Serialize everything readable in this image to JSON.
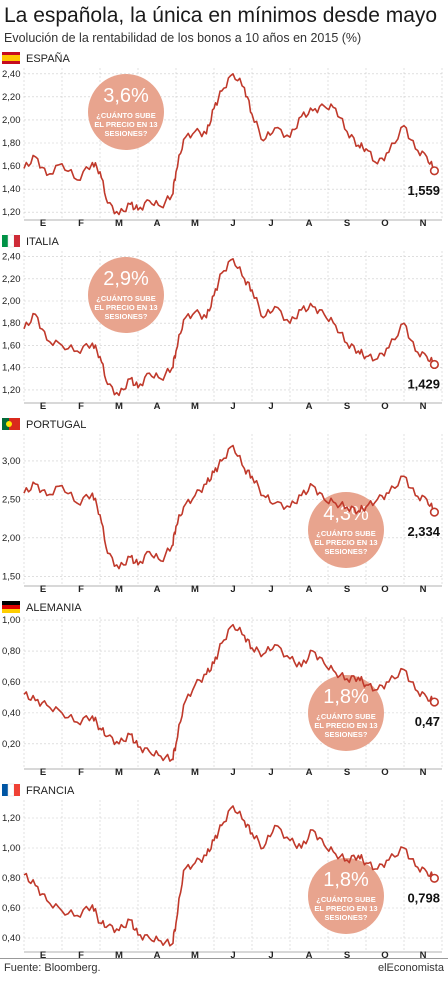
{
  "title": "La española, la única en mínimos desde mayo",
  "subtitle": "Evolución de la rentabilidad de los bonos a 10 años en 2015 (%)",
  "footer": {
    "source": "Fuente: Bloomberg.",
    "brand": "elEconomista"
  },
  "colors": {
    "line": "#c0392b",
    "bubble": "#e8a48e",
    "grid": "#cccccc"
  },
  "chart_data": [
    {
      "type": "line",
      "country": "ESPAÑA",
      "flag": "flag-spain",
      "months": [
        "E",
        "F",
        "M",
        "A",
        "M",
        "J",
        "J",
        "A",
        "S",
        "O",
        "N"
      ],
      "ylim": [
        1.15,
        2.45
      ],
      "yticks": [
        "1,20",
        "1,40",
        "1,60",
        "1,80",
        "2,00",
        "2,20",
        "2,40"
      ],
      "ytick_values": [
        1.2,
        1.4,
        1.6,
        1.8,
        2.0,
        2.2,
        2.4
      ],
      "last_value": "1,559",
      "bubble": {
        "pct": "3,6%",
        "question": [
          "¿CUÁNTO SUBE",
          "EL PRECIO EN 13",
          "SESIONES?"
        ],
        "side": "left"
      },
      "x": [
        0,
        0.3,
        0.6,
        1.0,
        1.4,
        1.8,
        2.0,
        2.2,
        2.5,
        2.8,
        3.0,
        3.3,
        3.6,
        3.9,
        4.0,
        4.2,
        4.5,
        4.8,
        5.0,
        5.2,
        5.5,
        5.8,
        6.0,
        6.3,
        6.6,
        7.0,
        7.3,
        7.6,
        7.9,
        8.2,
        8.5,
        8.8,
        9.0,
        9.3,
        9.6,
        10.0,
        10.3,
        10.6,
        10.8
      ],
      "values": [
        1.58,
        1.68,
        1.52,
        1.62,
        1.48,
        1.63,
        1.55,
        1.28,
        1.18,
        1.27,
        1.22,
        1.3,
        1.25,
        1.35,
        1.55,
        1.83,
        1.9,
        1.88,
        2.1,
        2.25,
        2.4,
        2.28,
        2.05,
        1.82,
        1.93,
        1.85,
        2.03,
        2.08,
        2.12,
        2.1,
        1.9,
        1.78,
        1.75,
        1.62,
        1.72,
        1.95,
        1.75,
        1.68,
        1.559
      ]
    },
    {
      "type": "line",
      "country": "ITALIA",
      "flag": "flag-italy",
      "months": [
        "E",
        "F",
        "M",
        "A",
        "M",
        "J",
        "J",
        "A",
        "S",
        "O",
        "N"
      ],
      "ylim": [
        1.1,
        2.45
      ],
      "yticks": [
        "1,20",
        "1,40",
        "1,60",
        "1,80",
        "2,00",
        "2,20",
        "2,40"
      ],
      "ytick_values": [
        1.2,
        1.4,
        1.6,
        1.8,
        2.0,
        2.2,
        2.4
      ],
      "last_value": "1,429",
      "bubble": {
        "pct": "2,9%",
        "question": [
          "¿CUÁNTO SUBE",
          "EL PRECIO EN 13",
          "SESIONES?"
        ],
        "side": "left"
      },
      "x": [
        0,
        0.3,
        0.6,
        1.0,
        1.4,
        1.8,
        2.0,
        2.2,
        2.5,
        2.8,
        3.0,
        3.3,
        3.6,
        3.9,
        4.0,
        4.2,
        4.5,
        4.8,
        5.0,
        5.2,
        5.5,
        5.8,
        6.0,
        6.3,
        6.6,
        7.0,
        7.3,
        7.6,
        7.9,
        8.2,
        8.5,
        8.8,
        9.0,
        9.3,
        9.6,
        10.0,
        10.3,
        10.6,
        10.8
      ],
      "values": [
        1.75,
        1.88,
        1.65,
        1.6,
        1.55,
        1.62,
        1.5,
        1.25,
        1.15,
        1.3,
        1.22,
        1.35,
        1.3,
        1.4,
        1.55,
        1.83,
        1.9,
        1.85,
        2.05,
        2.25,
        2.38,
        2.2,
        2.1,
        1.85,
        1.95,
        1.8,
        1.92,
        1.95,
        1.88,
        1.78,
        1.62,
        1.55,
        1.5,
        1.48,
        1.58,
        1.8,
        1.55,
        1.5,
        1.429
      ]
    },
    {
      "type": "line",
      "country": "PORTUGAL",
      "flag": "flag-portugal",
      "months": [
        "E",
        "F",
        "M",
        "A",
        "M",
        "J",
        "J",
        "A",
        "S",
        "O",
        "N"
      ],
      "ylim": [
        1.4,
        3.35
      ],
      "yticks": [
        "1,50",
        "2,00",
        "2,50",
        "3,00"
      ],
      "ytick_values": [
        1.5,
        2.0,
        2.5,
        3.0
      ],
      "last_value": "2,334",
      "bubble": {
        "pct": "4,3%",
        "question": [
          "¿CUÁNTO SUBE",
          "EL PRECIO EN 13",
          "SESIONES?"
        ],
        "side": "right"
      },
      "x": [
        0,
        0.3,
        0.6,
        1.0,
        1.4,
        1.8,
        2.0,
        2.2,
        2.5,
        2.8,
        3.0,
        3.3,
        3.6,
        3.9,
        4.0,
        4.2,
        4.5,
        4.8,
        5.0,
        5.2,
        5.5,
        5.8,
        6.0,
        6.3,
        6.6,
        7.0,
        7.3,
        7.6,
        7.9,
        8.2,
        8.5,
        8.8,
        9.0,
        9.3,
        9.6,
        10.0,
        10.3,
        10.6,
        10.8
      ],
      "values": [
        2.58,
        2.7,
        2.55,
        2.68,
        2.45,
        2.58,
        2.3,
        1.8,
        1.6,
        1.75,
        1.65,
        1.82,
        1.7,
        1.9,
        2.15,
        2.4,
        2.55,
        2.7,
        2.85,
        3.0,
        3.2,
        2.9,
        2.8,
        2.55,
        2.45,
        2.4,
        2.55,
        2.68,
        2.5,
        2.45,
        2.4,
        2.35,
        2.4,
        2.5,
        2.58,
        2.8,
        2.55,
        2.5,
        2.334
      ]
    },
    {
      "type": "line",
      "country": "ALEMANIA",
      "flag": "flag-germany",
      "months": [
        "E",
        "F",
        "M",
        "A",
        "M",
        "J",
        "J",
        "A",
        "S",
        "O",
        "N"
      ],
      "ylim": [
        0.05,
        1.02
      ],
      "yticks": [
        "0,20",
        "0,40",
        "0,60",
        "0,80",
        "1,00"
      ],
      "ytick_values": [
        0.2,
        0.4,
        0.6,
        0.8,
        1.0
      ],
      "last_value": "0,47",
      "bubble": {
        "pct": "1,8%",
        "question": [
          "¿CUÁNTO SUBE",
          "EL PRECIO EN 13",
          "SESIONES?"
        ],
        "side": "right"
      },
      "x": [
        0,
        0.3,
        0.6,
        1.0,
        1.4,
        1.8,
        2.0,
        2.2,
        2.5,
        2.8,
        3.0,
        3.3,
        3.6,
        3.9,
        4.0,
        4.2,
        4.5,
        4.8,
        5.0,
        5.2,
        5.5,
        5.8,
        6.0,
        6.3,
        6.6,
        7.0,
        7.3,
        7.6,
        7.9,
        8.2,
        8.5,
        8.8,
        9.0,
        9.3,
        9.6,
        10.0,
        10.3,
        10.6,
        10.8
      ],
      "values": [
        0.52,
        0.48,
        0.45,
        0.4,
        0.34,
        0.38,
        0.3,
        0.25,
        0.2,
        0.26,
        0.18,
        0.15,
        0.12,
        0.1,
        0.2,
        0.45,
        0.58,
        0.65,
        0.72,
        0.85,
        0.97,
        0.9,
        0.82,
        0.78,
        0.84,
        0.75,
        0.7,
        0.8,
        0.72,
        0.66,
        0.62,
        0.63,
        0.58,
        0.55,
        0.6,
        0.68,
        0.55,
        0.5,
        0.47
      ]
    },
    {
      "type": "line",
      "country": "FRANCIA",
      "flag": "flag-france",
      "months": [
        "E",
        "F",
        "M",
        "A",
        "M",
        "J",
        "J",
        "A",
        "S",
        "O",
        "N"
      ],
      "ylim": [
        0.32,
        1.32
      ],
      "yticks": [
        "0,40",
        "0,60",
        "0,80",
        "1,00",
        "1,20"
      ],
      "ytick_values": [
        0.4,
        0.6,
        0.8,
        1.0,
        1.2
      ],
      "last_value": "0,798",
      "bubble": {
        "pct": "1,8%",
        "question": [
          "¿CUÁNTO SUBE",
          "EL PRECIO EN 13",
          "SESIONES?"
        ],
        "side": "right"
      },
      "x": [
        0,
        0.3,
        0.6,
        1.0,
        1.4,
        1.8,
        2.0,
        2.2,
        2.5,
        2.8,
        3.0,
        3.3,
        3.6,
        3.9,
        4.0,
        4.2,
        4.5,
        4.8,
        5.0,
        5.2,
        5.5,
        5.8,
        6.0,
        6.3,
        6.6,
        7.0,
        7.3,
        7.6,
        7.9,
        8.2,
        8.5,
        8.8,
        9.0,
        9.3,
        9.6,
        10.0,
        10.3,
        10.6,
        10.8
      ],
      "values": [
        0.82,
        0.75,
        0.65,
        0.58,
        0.55,
        0.62,
        0.5,
        0.48,
        0.45,
        0.52,
        0.42,
        0.4,
        0.38,
        0.36,
        0.5,
        0.85,
        0.9,
        0.95,
        1.05,
        1.15,
        1.28,
        1.18,
        1.1,
        1.0,
        1.15,
        1.05,
        1.0,
        1.12,
        1.02,
        0.96,
        0.92,
        0.95,
        0.9,
        0.86,
        0.92,
        1.0,
        0.88,
        0.84,
        0.798
      ]
    }
  ]
}
